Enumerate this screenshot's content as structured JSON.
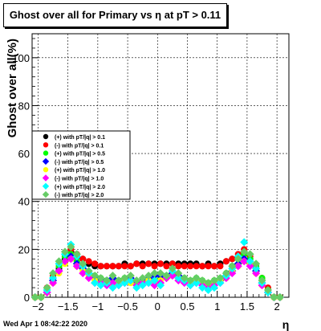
{
  "title": "Ghost over all for Primary vs  η at pT > 0.11",
  "timestamp": "Wed Apr  1 08:42:22 2020",
  "chart_data": {
    "type": "scatter",
    "xlabel": "η",
    "ylabel": "Ghost over all(%)",
    "xlim": [
      -2.1,
      2.2
    ],
    "ylim": [
      0,
      110
    ],
    "x_ticks": [
      "−2",
      "−1.5",
      "−1",
      "−0.5",
      "0",
      "0.5",
      "1",
      "1.5",
      "2"
    ],
    "y_ticks": [
      "0",
      "20",
      "40",
      "60",
      "80",
      "100"
    ],
    "grid": true,
    "legend_position": "middle-left",
    "series": [
      {
        "name": "(+) with pT/|q| > 0.1",
        "color": "#000000",
        "marker": "circle",
        "x": [
          -2.05,
          -1.95,
          -1.85,
          -1.75,
          -1.65,
          -1.55,
          -1.45,
          -1.35,
          -1.25,
          -1.15,
          -1.05,
          -0.95,
          -0.85,
          -0.75,
          -0.65,
          -0.55,
          -0.45,
          -0.35,
          -0.25,
          -0.15,
          -0.05,
          0.05,
          0.15,
          0.25,
          0.35,
          0.45,
          0.55,
          0.65,
          0.75,
          0.85,
          0.95,
          1.05,
          1.15,
          1.25,
          1.35,
          1.45,
          1.55,
          1.65,
          1.75,
          1.85,
          1.95,
          2.05
        ],
        "y": [
          0,
          0,
          3,
          8,
          12,
          16,
          19,
          17,
          16,
          14,
          13,
          13,
          13,
          13,
          13,
          14,
          13,
          14,
          14,
          14,
          14,
          14,
          14,
          14,
          14,
          14,
          14,
          14,
          13,
          14,
          13,
          14,
          15,
          16,
          17,
          18,
          16,
          12,
          8,
          3,
          0,
          0
        ]
      },
      {
        "name": "(-) with pT/|q| > 0.1",
        "color": "#ff0000",
        "marker": "circle",
        "x": [
          -2.05,
          -1.95,
          -1.85,
          -1.75,
          -1.65,
          -1.55,
          -1.45,
          -1.35,
          -1.25,
          -1.15,
          -1.05,
          -0.95,
          -0.85,
          -0.75,
          -0.65,
          -0.55,
          -0.45,
          -0.35,
          -0.25,
          -0.15,
          -0.05,
          0.05,
          0.15,
          0.25,
          0.35,
          0.45,
          0.55,
          0.65,
          0.75,
          0.85,
          0.95,
          1.05,
          1.15,
          1.25,
          1.35,
          1.45,
          1.55,
          1.65,
          1.75,
          1.85,
          1.95,
          2.05
        ],
        "y": [
          0,
          0,
          4,
          9,
          13,
          17,
          20,
          18,
          16,
          15,
          14,
          13,
          13,
          13,
          13,
          13,
          13,
          14,
          13,
          14,
          13,
          14,
          13,
          14,
          13,
          13,
          13,
          13,
          13,
          13,
          13,
          13,
          15,
          16,
          18,
          20,
          17,
          13,
          8,
          4,
          0,
          0
        ]
      },
      {
        "name": "(+) with pT/|q| > 0.5",
        "color": "#00ff00",
        "marker": "circle",
        "x": [
          -2.05,
          -1.95,
          -1.85,
          -1.75,
          -1.65,
          -1.55,
          -1.45,
          -1.35,
          -1.25,
          -1.15,
          -1.05,
          -0.95,
          -0.85,
          -0.75,
          -0.65,
          -0.55,
          -0.45,
          -0.35,
          -0.25,
          -0.15,
          -0.05,
          0.05,
          0.15,
          0.25,
          0.35,
          0.45,
          0.55,
          0.65,
          0.75,
          0.85,
          0.95,
          1.05,
          1.15,
          1.25,
          1.35,
          1.45,
          1.55,
          1.65,
          1.75,
          1.85,
          1.95,
          2.05
        ],
        "y": [
          0,
          0,
          3,
          8,
          13,
          17,
          18,
          15,
          12,
          10,
          9,
          8,
          7,
          8,
          7,
          8,
          7,
          6,
          7,
          8,
          7,
          8,
          9,
          10,
          9,
          8,
          7,
          8,
          7,
          6,
          7,
          8,
          10,
          13,
          16,
          18,
          16,
          13,
          8,
          3,
          0,
          0
        ]
      },
      {
        "name": "(-) with pT/|q| > 0.5",
        "color": "#0000ff",
        "marker": "diamond",
        "x": [
          -2.05,
          -1.95,
          -1.85,
          -1.75,
          -1.65,
          -1.55,
          -1.45,
          -1.35,
          -1.25,
          -1.15,
          -1.05,
          -0.95,
          -0.85,
          -0.75,
          -0.65,
          -0.55,
          -0.45,
          -0.35,
          -0.25,
          -0.15,
          -0.05,
          0.05,
          0.15,
          0.25,
          0.35,
          0.45,
          0.55,
          0.65,
          0.75,
          0.85,
          0.95,
          1.05,
          1.15,
          1.25,
          1.35,
          1.45,
          1.55,
          1.65,
          1.75,
          1.85,
          1.95,
          2.05
        ],
        "y": [
          0,
          0,
          2,
          7,
          11,
          15,
          17,
          14,
          12,
          10,
          8,
          7,
          7,
          8,
          6,
          7,
          8,
          6,
          7,
          8,
          9,
          9,
          8,
          10,
          9,
          7,
          6,
          7,
          6,
          5,
          6,
          7,
          9,
          11,
          14,
          16,
          14,
          11,
          6,
          2,
          0,
          0
        ]
      },
      {
        "name": "(+) with pT/|q| > 1.0",
        "color": "#ffff00",
        "marker": "circle",
        "x": [
          -2.05,
          -1.95,
          -1.85,
          -1.75,
          -1.65,
          -1.55,
          -1.45,
          -1.35,
          -1.25,
          -1.15,
          -1.05,
          -0.95,
          -0.85,
          -0.75,
          -0.65,
          -0.55,
          -0.45,
          -0.35,
          -0.25,
          -0.15,
          -0.05,
          0.05,
          0.15,
          0.25,
          0.35,
          0.45,
          0.55,
          0.65,
          0.75,
          0.85,
          0.95,
          1.05,
          1.15,
          1.25,
          1.35,
          1.45,
          1.55,
          1.65,
          1.75,
          1.85,
          1.95,
          2.05
        ],
        "y": [
          0,
          0,
          2,
          6,
          10,
          14,
          16,
          13,
          11,
          9,
          7,
          6,
          6,
          5,
          6,
          7,
          6,
          5,
          6,
          7,
          6,
          7,
          8,
          9,
          8,
          7,
          6,
          7,
          6,
          5,
          6,
          7,
          8,
          11,
          13,
          15,
          14,
          10,
          5,
          2,
          0,
          0
        ]
      },
      {
        "name": "(-) with pT/|q| > 1.0",
        "color": "#ff00ff",
        "marker": "diamond",
        "x": [
          -2.05,
          -1.95,
          -1.85,
          -1.75,
          -1.65,
          -1.55,
          -1.45,
          -1.35,
          -1.25,
          -1.15,
          -1.05,
          -0.95,
          -0.85,
          -0.75,
          -0.65,
          -0.55,
          -0.45,
          -0.35,
          -0.25,
          -0.15,
          -0.05,
          0.05,
          0.15,
          0.25,
          0.35,
          0.45,
          0.55,
          0.65,
          0.75,
          0.85,
          0.95,
          1.05,
          1.15,
          1.25,
          1.35,
          1.45,
          1.55,
          1.65,
          1.75,
          1.85,
          1.95,
          2.05
        ],
        "y": [
          0,
          0,
          2,
          6,
          11,
          15,
          16,
          13,
          10,
          8,
          6,
          6,
          5,
          6,
          5,
          6,
          7,
          5,
          6,
          6,
          5,
          6,
          8,
          9,
          7,
          6,
          5,
          6,
          5,
          4,
          5,
          6,
          8,
          10,
          13,
          15,
          13,
          10,
          5,
          2,
          0,
          0
        ]
      },
      {
        "name": "(+) with pT/|q| > 2.0",
        "color": "#00ffff",
        "marker": "diamond",
        "x": [
          -2.05,
          -1.95,
          -1.85,
          -1.75,
          -1.65,
          -1.55,
          -1.45,
          -1.35,
          -1.25,
          -1.15,
          -1.05,
          -0.95,
          -0.85,
          -0.75,
          -0.65,
          -0.55,
          -0.45,
          -0.35,
          -0.25,
          -0.15,
          -0.05,
          0.05,
          0.15,
          0.25,
          0.35,
          0.45,
          0.55,
          0.65,
          0.75,
          0.85,
          0.95,
          1.05,
          1.15,
          1.25,
          1.35,
          1.45,
          1.55,
          1.65,
          1.75,
          1.85,
          1.95,
          2.05
        ],
        "y": [
          0,
          0,
          3,
          8,
          14,
          18,
          22,
          17,
          13,
          10,
          6,
          5,
          6,
          4,
          5,
          6,
          7,
          4,
          5,
          6,
          7,
          5,
          9,
          11,
          8,
          7,
          5,
          6,
          4,
          3,
          4,
          6,
          9,
          12,
          17,
          23,
          15,
          12,
          6,
          2,
          0,
          0
        ]
      },
      {
        "name": "(-) with pT/|q| > 2.0",
        "color": "#66cc66",
        "marker": "diamond",
        "x": [
          -2.05,
          -1.95,
          -1.85,
          -1.75,
          -1.65,
          -1.55,
          -1.45,
          -1.35,
          -1.25,
          -1.15,
          -1.05,
          -0.95,
          -0.85,
          -0.75,
          -0.65,
          -0.55,
          -0.45,
          -0.35,
          -0.25,
          -0.15,
          -0.05,
          0.05,
          0.15,
          0.25,
          0.35,
          0.45,
          0.55,
          0.65,
          0.75,
          0.85,
          0.95,
          1.05,
          1.15,
          1.25,
          1.35,
          1.45,
          1.55,
          1.65,
          1.75,
          1.85,
          1.95,
          2.05
        ],
        "y": [
          0,
          0,
          4,
          10,
          15,
          19,
          21,
          18,
          14,
          11,
          9,
          8,
          7,
          9,
          7,
          8,
          9,
          7,
          8,
          9,
          10,
          10,
          9,
          12,
          10,
          8,
          7,
          8,
          7,
          6,
          7,
          8,
          10,
          13,
          16,
          19,
          18,
          14,
          7,
          3,
          0,
          0
        ]
      }
    ]
  }
}
